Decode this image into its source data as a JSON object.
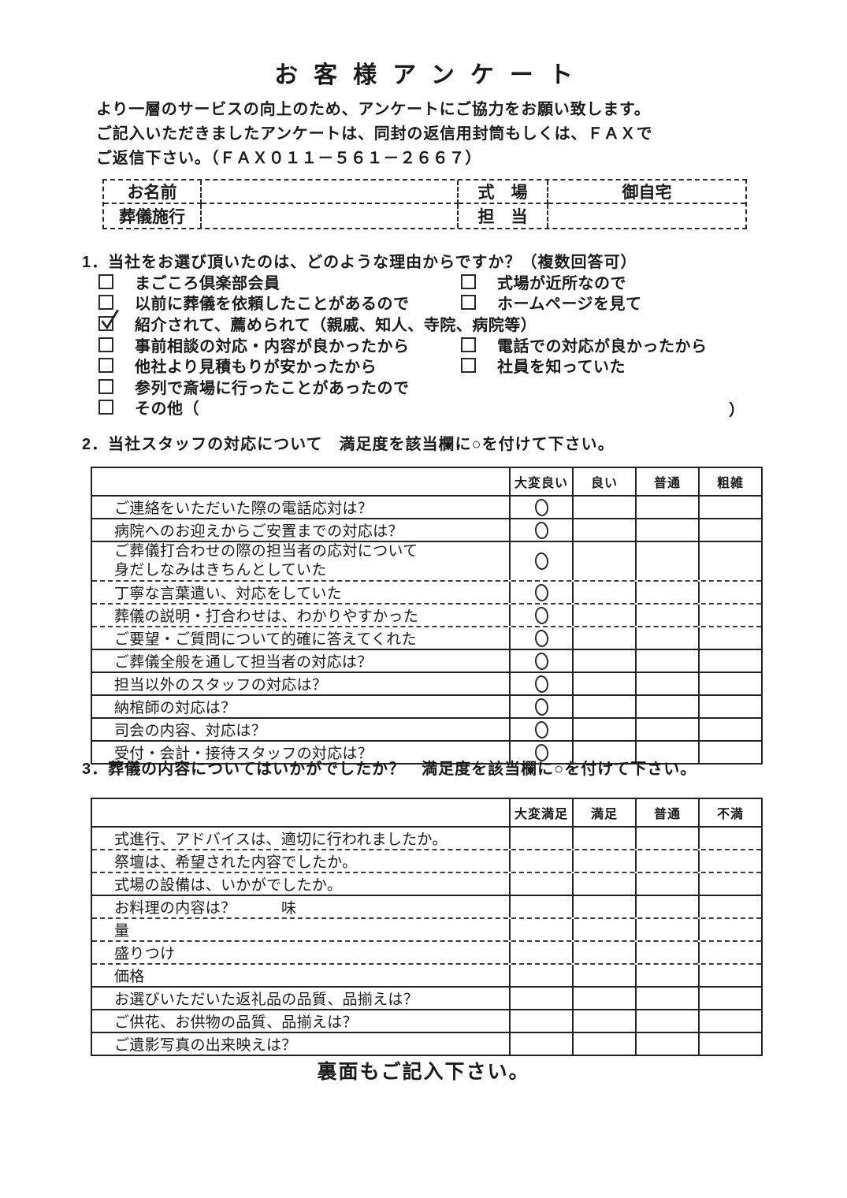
{
  "page": {
    "title": "お客様アンケート",
    "footer": "裏面もご記入下さい。"
  },
  "intro": {
    "lines": [
      "より一層のサービスの向上のため、アンケートにご協力をお願い致します。",
      "ご記入いただきましたアンケートは、同封の返信用封筒もしくは、ＦＡＸで",
      "ご返信下さい。（ＦＡＸ０１１－５６１－２６６７）"
    ]
  },
  "info_box": {
    "name_label": "お名前",
    "name_value": "",
    "venue_label": "式　場",
    "venue_value": "御自宅",
    "org_label": "葬儀施行",
    "org_value": "",
    "staff_label": "担　当",
    "staff_value": ""
  },
  "q1": {
    "heading": "1．当社をお選び頂いたのは、どのような理由からですか？（複数回答可）",
    "rows": [
      {
        "left": {
          "label": "まごころ倶楽部会員",
          "checked": false
        },
        "right": {
          "label": "式場が近所なので",
          "checked": false
        }
      },
      {
        "left": {
          "label": "以前に葬儀を依頼したことがあるので",
          "checked": false
        },
        "right": {
          "label": "ホームページを見て",
          "checked": false
        }
      },
      {
        "left": {
          "label": "紹介されて、薦められて（親戚、知人、寺院、病院等）",
          "checked": true
        }
      },
      {
        "left": {
          "label": "事前相談の対応・内容が良かったから",
          "checked": false
        },
        "right": {
          "label": "電話での対応が良かったから",
          "checked": false
        }
      },
      {
        "left": {
          "label": "他社より見積もりが安かったから",
          "checked": false
        },
        "right": {
          "label": "社員を知っていた",
          "checked": false
        }
      },
      {
        "left": {
          "label": "参列で斎場に行ったことがあったので",
          "checked": false
        }
      },
      {
        "left": {
          "label": "その他（",
          "checked": false
        },
        "close_paren": "）"
      }
    ]
  },
  "q2": {
    "heading": "2．当社スタッフの対応について　満足度を該当欄に○を付けて下さい。",
    "table": {
      "headers": [
        "大変良い",
        "良い",
        "普通",
        "粗雑"
      ],
      "rows": [
        {
          "text": "ご連絡をいただいた際の電話応対は？",
          "mark": 0,
          "sep": "solid"
        },
        {
          "text": "病院へのお迎えからご安置までの対応は？",
          "mark": 0,
          "sep": "solid"
        },
        {
          "text": "ご葬儀打合わせの際の担当者の応対について",
          "text2": "身だしなみはきちんとしていた",
          "mark": 0,
          "sep": "dash"
        },
        {
          "text": "丁寧な言葉遣い、対応をしていた",
          "mark": 0,
          "sep": "dash"
        },
        {
          "text": "葬儀の説明・打合わせは、わかりやすかった",
          "mark": 0,
          "sep": "dash"
        },
        {
          "text": "ご要望・ご質問について的確に答えてくれた",
          "mark": 0,
          "sep": "solid"
        },
        {
          "text": "ご葬儀全般を通して担当者の対応は？",
          "mark": 0,
          "sep": "solid"
        },
        {
          "text": "担当以外のスタッフの対応は？",
          "mark": 0,
          "sep": "solid"
        },
        {
          "text": "納棺師の対応は？",
          "mark": 0,
          "sep": "solid"
        },
        {
          "text": "司会の内容、対応は？",
          "mark": 0,
          "sep": "solid"
        },
        {
          "text": "受付・会計・接待スタッフの対応は？",
          "mark": 0,
          "sep": "solid"
        }
      ]
    }
  },
  "q3": {
    "heading": "3．葬儀の内容についてはいかがでしたか？　満足度を該当欄に○を付けて下さい。",
    "table": {
      "headers": [
        "大変満足",
        "満足",
        "普通",
        "不満"
      ],
      "rows": [
        {
          "text": "式進行、アドバイスは、適切に行われましたか。",
          "mark": null,
          "sep": "dash"
        },
        {
          "text": "祭壇は、希望された内容でしたか。",
          "mark": null,
          "sep": "dash"
        },
        {
          "text": "式場の設備は、いかがでしたか。",
          "mark": null,
          "sep": "solid"
        },
        {
          "text": "お料理の内容は？",
          "sub": "味",
          "mark": null,
          "sep": "dash"
        },
        {
          "text": "量",
          "indent": true,
          "mark": null,
          "sep": "dash"
        },
        {
          "text": "盛りつけ",
          "indent": true,
          "mark": null,
          "sep": "dash"
        },
        {
          "text": "価格",
          "indent": true,
          "mark": null,
          "sep": "solid"
        },
        {
          "text": "お選びいただいた返礼品の品質、品揃えは？",
          "mark": null,
          "sep": "solid"
        },
        {
          "text": "ご供花、お供物の品質、品揃えは？",
          "mark": null,
          "sep": "solid"
        },
        {
          "text": "ご遺影写真の出来映えは？",
          "mark": null,
          "sep": "solid"
        }
      ]
    }
  }
}
